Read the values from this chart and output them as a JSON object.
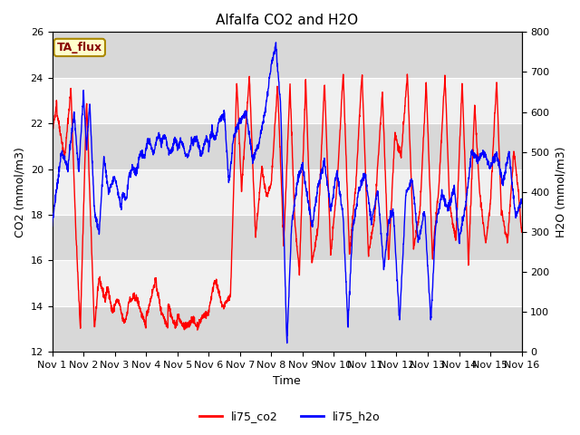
{
  "title": "Alfalfa CO2 and H2O",
  "xlabel": "Time",
  "ylabel_left": "CO2 (mmol/m3)",
  "ylabel_right": "H2O (mmol/m3)",
  "ylim_left": [
    12,
    26
  ],
  "ylim_right": [
    0,
    800
  ],
  "yticks_left": [
    12,
    14,
    16,
    18,
    20,
    22,
    24,
    26
  ],
  "yticks_right": [
    0,
    100,
    200,
    300,
    400,
    500,
    600,
    700,
    800
  ],
  "xtick_labels": [
    "Nov 1",
    "Nov 2",
    "Nov 3",
    "Nov 4",
    "Nov 5",
    "Nov 6",
    "Nov 7",
    "Nov 8",
    "Nov 9",
    "Nov 10",
    "Nov 11",
    "Nov 12",
    "Nov 13",
    "Nov 14",
    "Nov 15",
    "Nov 16"
  ],
  "legend_labels": [
    "li75_co2",
    "li75_h2o"
  ],
  "legend_colors": [
    "red",
    "blue"
  ],
  "tag_label": "TA_flux",
  "tag_facecolor": "#ffffcc",
  "tag_edgecolor": "#aa8800",
  "line_color_co2": "red",
  "line_color_h2o": "blue",
  "line_width": 1.0,
  "background_color": "#ffffff",
  "plot_bg_color": "#f0f0f0",
  "band_light": "#f0f0f0",
  "band_dark": "#d8d8d8",
  "n_days": 15,
  "title_fontsize": 11,
  "axis_label_fontsize": 9,
  "tick_fontsize": 8
}
